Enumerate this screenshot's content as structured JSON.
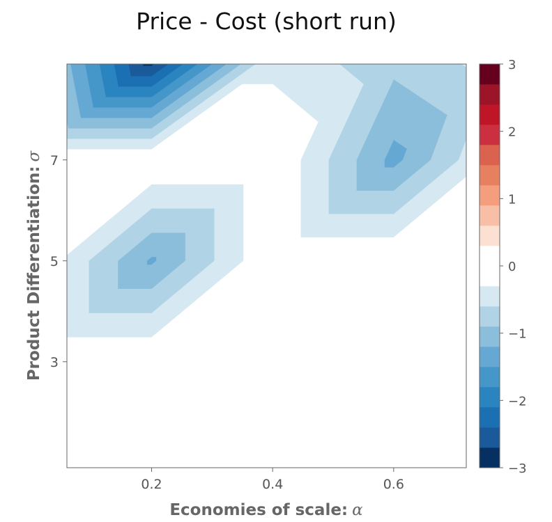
{
  "chart_data": {
    "type": "heatmap",
    "subtype": "filled-contour",
    "title": "Price - Cost (short run)",
    "xlabel": "Economies of scale:",
    "xlabel_symbol": "α",
    "ylabel": "Product Differentiation:",
    "ylabel_symbol": "σ",
    "xlim": [
      0.06,
      0.72
    ],
    "ylim": [
      0.9,
      8.9
    ],
    "x_ticks": [
      0.2,
      0.4,
      0.6
    ],
    "x_tick_labels": [
      "0.2",
      "0.4",
      "0.6"
    ],
    "y_ticks": [
      3,
      5,
      7
    ],
    "y_tick_labels": [
      "3",
      "5",
      "7"
    ],
    "grid": false,
    "x": [
      0.0,
      0.2,
      0.4,
      0.6,
      0.8
    ],
    "y": [
      1,
      3,
      5,
      7,
      9
    ],
    "z": [
      [
        0.0,
        0.0,
        0.0,
        0.0,
        0.0
      ],
      [
        0.0,
        0.0,
        0.0,
        0.0,
        0.0
      ],
      [
        0.0,
        -1.25,
        0.0,
        0.0,
        0.0
      ],
      [
        0.0,
        0.0,
        0.0,
        -1.3,
        0.0
      ],
      [
        -0.4,
        -2.9,
        -0.4,
        -0.8,
        -0.4
      ]
    ],
    "colorbar": {
      "min": -3,
      "max": 3,
      "ticks": [
        -3,
        -2,
        -1,
        0,
        1,
        2,
        3
      ],
      "tick_labels": [
        "−3",
        "−2",
        "−1",
        "0",
        "1",
        "2",
        "3"
      ],
      "colors": [
        "#053061",
        "#1b5a9a",
        "#1a70b3",
        "#2a84c0",
        "#4596c9",
        "#65a8d3",
        "#8bbedb",
        "#b0d3e6",
        "#d6e8f1",
        "#ffffff",
        "#ffffff",
        "#fce0d2",
        "#f9bfa6",
        "#f49e7e",
        "#e6805f",
        "#db624e",
        "#cc3040",
        "#be1527",
        "#9b1428",
        "#67001f"
      ]
    }
  }
}
